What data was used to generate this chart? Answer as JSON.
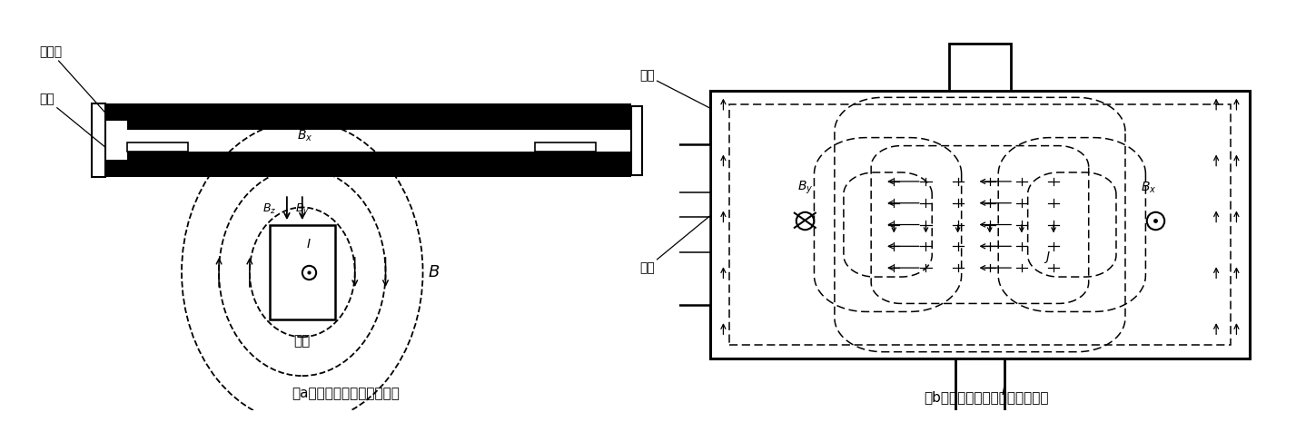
{
  "fig_width": 14.38,
  "fig_height": 4.76,
  "bg_color": "#ffffff",
  "lc": "#000000",
  "caption_a": "（a）电磁脉冲板件焊接装配",
  "caption_b": "（b）板件内部磁场以及电流分布",
  "label_gudingkuai": "固定块",
  "label_dianpian": "垫片",
  "label_xianquan": "线圈",
  "label_jiban": "基板",
  "label_feiban": "飞板"
}
